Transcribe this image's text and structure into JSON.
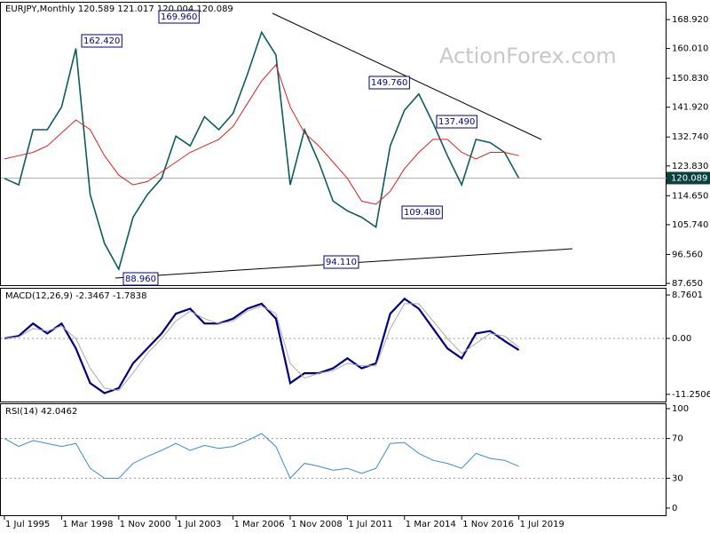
{
  "chart_data": [
    {
      "type": "line",
      "title": "EURJPY,Monthly  120.589 121.017 120.004 120.089",
      "watermark": "ActionForex.com",
      "categories": [
        "1 Jul 1995",
        null,
        null,
        null,
        "1 Mar 1998",
        null,
        null,
        null,
        "1 Nov 2000",
        null,
        null,
        null,
        "1 Jul 2003",
        null,
        null,
        null,
        "1 Mar 2006",
        null,
        null,
        null,
        "1 Nov 2008",
        null,
        null,
        null,
        "1 Jul 2011",
        null,
        null,
        null,
        "1 Mar 2014",
        null,
        null,
        null,
        "1 Nov 2016",
        null,
        null,
        null,
        "1 Jul 2019"
      ],
      "series": [
        {
          "color": "#0b5c5c",
          "values": [
            120,
            118,
            135,
            135,
            142,
            160,
            115,
            100,
            92,
            108,
            115,
            120,
            133,
            130,
            139,
            135,
            140,
            152,
            165,
            158,
            118,
            135,
            125,
            113,
            110,
            108,
            105,
            130,
            141,
            146,
            137,
            127,
            118,
            132,
            131,
            128,
            120.089
          ]
        },
        {
          "color": "#e02020",
          "values": [
            126,
            127,
            128,
            130,
            134,
            138,
            135,
            127,
            121,
            118,
            119,
            122,
            125,
            128,
            130,
            132,
            136,
            143,
            150,
            155,
            142,
            134,
            130,
            125,
            120,
            113,
            112,
            116,
            123,
            128,
            132,
            132,
            128,
            126,
            128,
            128,
            127
          ]
        }
      ],
      "annotations": [
        "162.420",
        "169.960",
        "149.760",
        "137.490",
        "109.480",
        "94.110",
        "88.960"
      ],
      "last": {
        "value": 120.089,
        "label": "120.089"
      },
      "ylim": [
        87.1,
        174.4
      ],
      "yticks": [
        {
          "value": 87.65,
          "label": "87.650"
        },
        {
          "value": 96.56,
          "label": "96.560"
        },
        {
          "value": 105.74,
          "label": "105.740"
        },
        {
          "value": 114.65,
          "label": "114.650"
        },
        {
          "value": 123.83,
          "label": "123.830"
        },
        {
          "value": 132.74,
          "label": "132.740"
        },
        {
          "value": 141.92,
          "label": "141.920"
        },
        {
          "value": 150.83,
          "label": "150.830"
        },
        {
          "value": 160.01,
          "label": "160.010"
        },
        {
          "value": 168.92,
          "label": "168.920"
        }
      ],
      "grid": false
    },
    {
      "type": "line",
      "title": "MACD(12,26,9) -2.3467 -1.7838",
      "series": [
        {
          "color": "#000080",
          "values": [
            0,
            0.5,
            3,
            1,
            3,
            -2,
            -9,
            -11,
            -10,
            -5,
            -2,
            1,
            5,
            6,
            3,
            3,
            4,
            6,
            7,
            4,
            -9,
            -7,
            -7,
            -6,
            -4,
            -6,
            -5,
            5,
            8,
            6,
            2,
            -2,
            -4,
            1,
            1.5,
            -0.5,
            -2.3467
          ]
        },
        {
          "color": "#a8a8bc",
          "values": [
            0,
            0.3,
            2,
            1.5,
            2.5,
            0,
            -6,
            -10,
            -10.5,
            -7,
            -3,
            0,
            3.5,
            5.5,
            4,
            3,
            3.5,
            5.5,
            6.5,
            5,
            -5,
            -8,
            -7,
            -6.5,
            -5,
            -5.5,
            -5.5,
            2,
            7,
            7,
            3.5,
            0,
            -3,
            -1,
            1,
            0.5,
            -1.7838
          ]
        }
      ],
      "ylim": [
        -12.7,
        10.2
      ],
      "yticks": [
        8.7601,
        {
          "value": 0,
          "label": "0.00"
        },
        -11.2506
      ],
      "grid": true
    },
    {
      "type": "line",
      "title": "RSI(14) 42.0462",
      "series": [
        {
          "color": "#3a8ad8",
          "values": [
            70,
            62,
            68,
            65,
            62,
            65,
            40,
            30,
            30,
            45,
            52,
            58,
            65,
            58,
            63,
            60,
            62,
            68,
            75,
            62,
            30,
            45,
            42,
            38,
            40,
            35,
            40,
            65,
            66,
            55,
            48,
            45,
            40,
            55,
            50,
            48,
            42.0462
          ]
        }
      ],
      "ylim": [
        -7.2,
        105.4
      ],
      "yticks": [
        100,
        70,
        30,
        0
      ],
      "grid": true
    }
  ]
}
